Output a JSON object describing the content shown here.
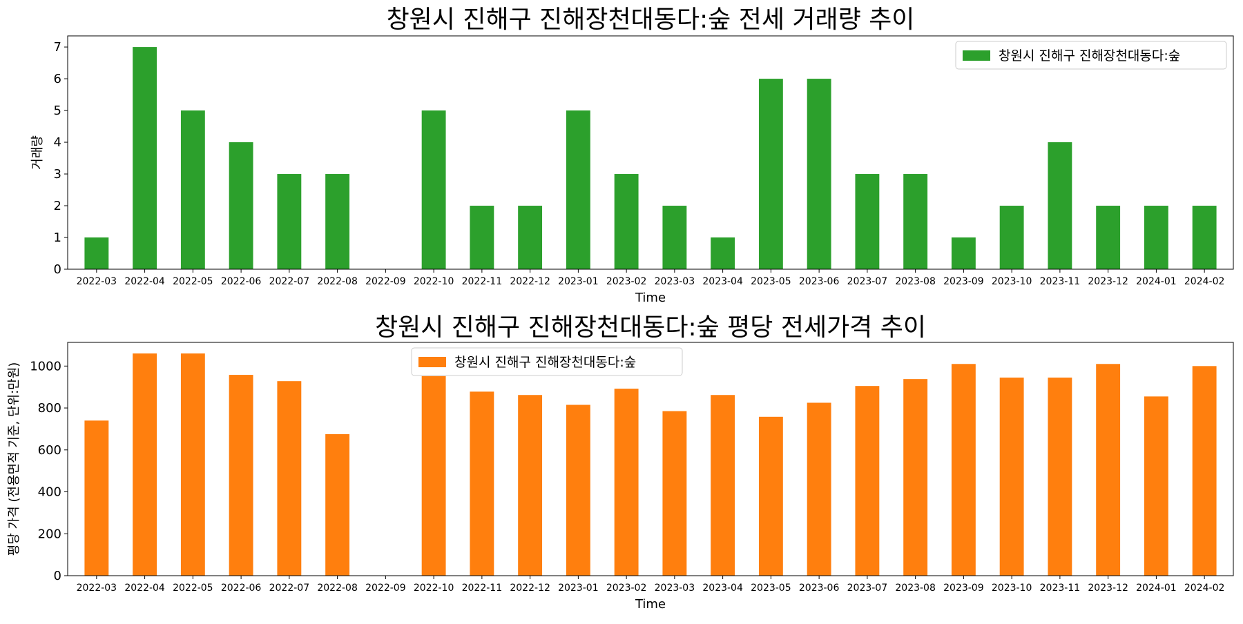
{
  "chart_data": [
    {
      "type": "bar",
      "title": "창원시 진해구 진해장천대동다:숲 전세 거래량 추이",
      "xlabel": "Time",
      "ylabel": "거래량",
      "categories": [
        "2022-03",
        "2022-04",
        "2022-05",
        "2022-06",
        "2022-07",
        "2022-08",
        "2022-09",
        "2022-10",
        "2022-11",
        "2022-12",
        "2023-01",
        "2023-02",
        "2023-03",
        "2023-04",
        "2023-05",
        "2023-06",
        "2023-07",
        "2023-08",
        "2023-09",
        "2023-10",
        "2023-11",
        "2023-12",
        "2024-01",
        "2024-02"
      ],
      "series": [
        {
          "name": "창원시 진해구 진해장천대동다:숲",
          "color": "#2ca02c",
          "values": [
            1,
            7,
            5,
            4,
            3,
            3,
            0,
            5,
            2,
            2,
            5,
            3,
            2,
            1,
            6,
            6,
            3,
            3,
            1,
            2,
            4,
            2,
            2,
            2
          ]
        }
      ],
      "ylim": [
        0,
        7.35
      ],
      "yticks": [
        0,
        1,
        2,
        3,
        4,
        5,
        6,
        7
      ],
      "legend": "top-right",
      "grid": false
    },
    {
      "type": "bar",
      "title": "창원시 진해구 진해장천대동다:숲 평당 전세가격 추이",
      "xlabel": "Time",
      "ylabel": "평당 가격 (전용면적 기준, 단위:만원)",
      "categories": [
        "2022-03",
        "2022-04",
        "2022-05",
        "2022-06",
        "2022-07",
        "2022-08",
        "2022-09",
        "2022-10",
        "2022-11",
        "2022-12",
        "2023-01",
        "2023-02",
        "2023-03",
        "2023-04",
        "2023-05",
        "2023-06",
        "2023-07",
        "2023-08",
        "2023-09",
        "2023-10",
        "2023-11",
        "2023-12",
        "2024-01",
        "2024-02"
      ],
      "series": [
        {
          "name": "창원시 진해구 진해장천대동다:숲",
          "color": "#ff7f0e",
          "values": [
            740,
            1060,
            1060,
            958,
            928,
            675,
            0,
            952,
            878,
            862,
            815,
            892,
            785,
            862,
            758,
            825,
            905,
            938,
            1010,
            945,
            945,
            1010,
            855,
            1000
          ]
        }
      ],
      "ylim": [
        0,
        1113
      ],
      "yticks": [
        0,
        200,
        400,
        600,
        800,
        1000
      ],
      "legend": "top-center",
      "grid": false
    }
  ]
}
